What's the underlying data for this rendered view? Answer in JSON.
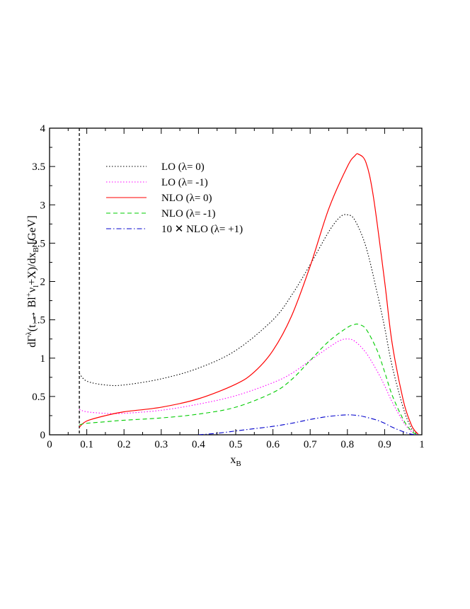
{
  "chart_data": {
    "type": "line",
    "title": "",
    "xlabel": "x_B",
    "ylabel": "dΓ^λ(t → Bl^+ν_l+X)/dx_B [GeV]",
    "xlim": [
      0,
      1
    ],
    "ylim": [
      0,
      4
    ],
    "x_ticks": [
      "0",
      "0.1",
      "0.2",
      "0.3",
      "0.4",
      "0.5",
      "0.6",
      "0.7",
      "0.8",
      "0.9",
      "1"
    ],
    "y_ticks": [
      "0",
      "0.5",
      "1",
      "1.5",
      "2",
      "2.5",
      "3",
      "3.5",
      "4"
    ],
    "grid": false,
    "legend_position": "top-left",
    "threshold_line_x": 0.08,
    "series": [
      {
        "name": "LO (λ= 0)",
        "color": "#000000",
        "style": "dotted",
        "x": [
          0.08,
          0.1,
          0.15,
          0.2,
          0.3,
          0.4,
          0.5,
          0.6,
          0.65,
          0.7,
          0.75,
          0.78,
          0.8,
          0.82,
          0.85,
          0.88,
          0.9,
          0.92,
          0.95,
          0.97,
          0.98,
          0.99
        ],
        "y": [
          0.8,
          0.7,
          0.65,
          0.65,
          0.73,
          0.87,
          1.1,
          1.5,
          1.82,
          2.22,
          2.65,
          2.84,
          2.87,
          2.8,
          2.45,
          1.85,
          1.4,
          0.9,
          0.35,
          0.1,
          0.04,
          0.01
        ]
      },
      {
        "name": "LO (λ= -1)",
        "color": "#ff00ff",
        "style": "dotted",
        "x": [
          0.08,
          0.1,
          0.15,
          0.2,
          0.3,
          0.4,
          0.5,
          0.6,
          0.65,
          0.7,
          0.75,
          0.78,
          0.8,
          0.82,
          0.85,
          0.88,
          0.9,
          0.92,
          0.95,
          0.97,
          0.98,
          0.99
        ],
        "y": [
          0.33,
          0.3,
          0.28,
          0.28,
          0.32,
          0.4,
          0.51,
          0.68,
          0.8,
          0.97,
          1.14,
          1.23,
          1.25,
          1.22,
          1.07,
          0.83,
          0.64,
          0.43,
          0.17,
          0.05,
          0.02,
          0.005
        ]
      },
      {
        "name": "NLO (λ= 0)",
        "color": "#ff0000",
        "style": "solid",
        "x": [
          0.08,
          0.1,
          0.15,
          0.2,
          0.3,
          0.4,
          0.5,
          0.55,
          0.6,
          0.65,
          0.7,
          0.75,
          0.8,
          0.82,
          0.83,
          0.85,
          0.87,
          0.9,
          0.92,
          0.95,
          0.97,
          0.98,
          0.99
        ],
        "y": [
          0.1,
          0.18,
          0.25,
          0.3,
          0.36,
          0.47,
          0.66,
          0.82,
          1.1,
          1.55,
          2.2,
          2.95,
          3.5,
          3.64,
          3.66,
          3.55,
          3.1,
          2.0,
          1.2,
          0.45,
          0.15,
          0.06,
          0.01
        ]
      },
      {
        "name": "NLO (λ= -1)",
        "color": "#00cc00",
        "style": "dashed",
        "x": [
          0.08,
          0.1,
          0.15,
          0.2,
          0.3,
          0.4,
          0.5,
          0.6,
          0.65,
          0.7,
          0.75,
          0.8,
          0.82,
          0.83,
          0.85,
          0.88,
          0.9,
          0.92,
          0.95,
          0.97,
          0.98,
          0.99
        ],
        "y": [
          0.13,
          0.15,
          0.17,
          0.19,
          0.22,
          0.27,
          0.36,
          0.55,
          0.72,
          0.97,
          1.22,
          1.4,
          1.44,
          1.44,
          1.38,
          1.1,
          0.82,
          0.52,
          0.2,
          0.06,
          0.02,
          0.005
        ]
      },
      {
        "name": "10 ✕ NLO (λ= +1)",
        "color": "#0000cc",
        "style": "dashdot",
        "x": [
          0.4,
          0.45,
          0.5,
          0.55,
          0.6,
          0.65,
          0.7,
          0.75,
          0.8,
          0.83,
          0.85,
          0.88,
          0.9,
          0.92,
          0.95,
          0.97,
          0.98,
          0.99
        ],
        "y": [
          0.0,
          0.02,
          0.05,
          0.08,
          0.11,
          0.15,
          0.2,
          0.24,
          0.26,
          0.25,
          0.23,
          0.19,
          0.15,
          0.1,
          0.04,
          0.01,
          0.005,
          0.0
        ]
      }
    ]
  }
}
